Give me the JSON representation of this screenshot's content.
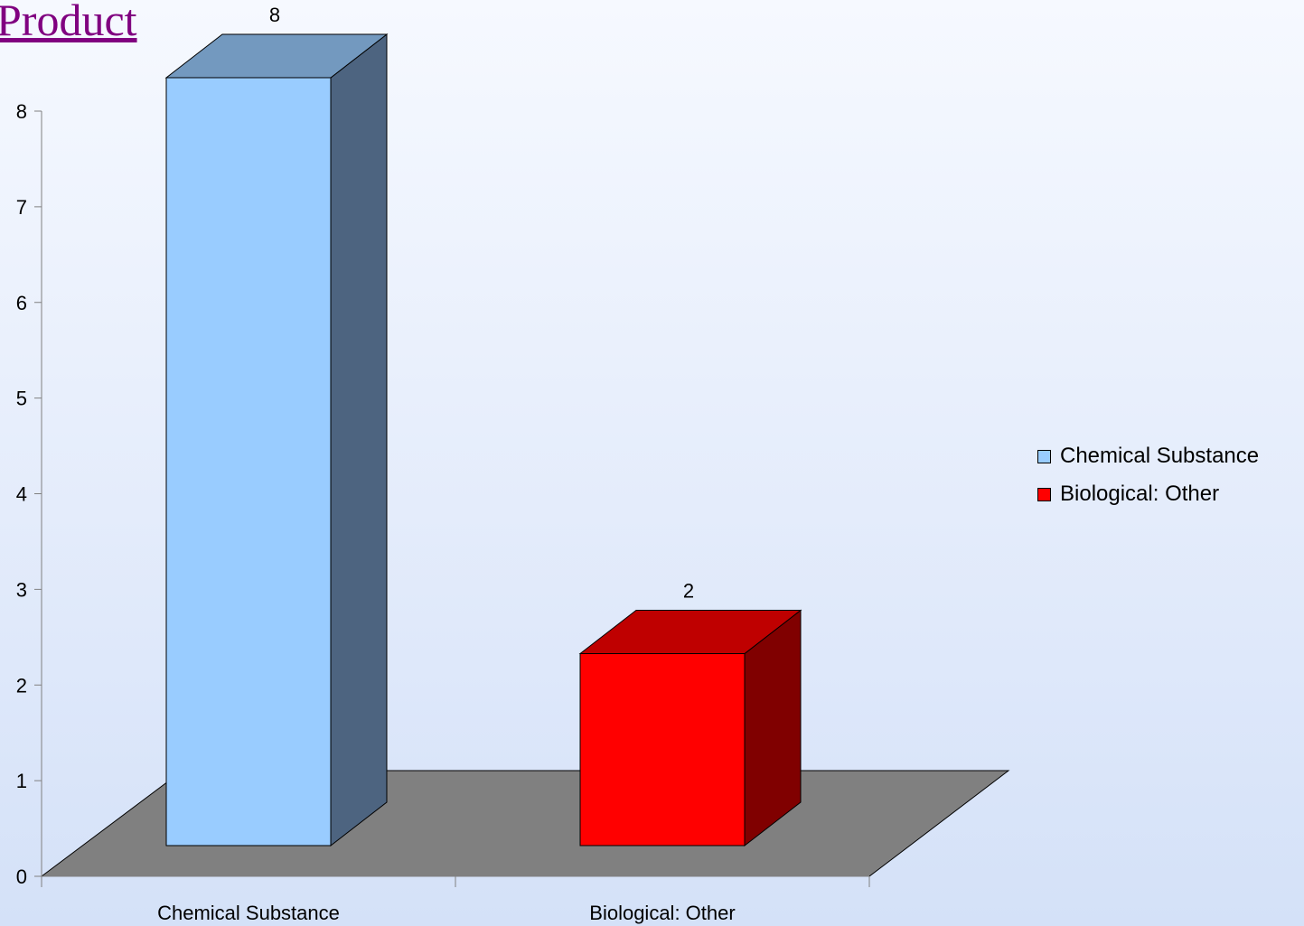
{
  "page": {
    "title_link": "Product"
  },
  "chart_data": {
    "type": "bar",
    "categories": [
      "Chemical Substance",
      "Biological: Other"
    ],
    "values": [
      8,
      2
    ],
    "data_labels": [
      "8",
      "2"
    ],
    "ylim": [
      0,
      8
    ],
    "yticks": [
      0,
      1,
      2,
      3,
      4,
      5,
      6,
      7,
      8
    ],
    "colors": {
      "Chemical Substance": {
        "front": "#99ccff",
        "side": "#4d6480",
        "top": "#7399bf"
      },
      "Biological: Other": {
        "front": "#ff0000",
        "side": "#800000",
        "top": "#bf0000"
      },
      "floor": "#808080"
    },
    "legend": {
      "position": "right",
      "entries": [
        {
          "label": "Chemical Substance",
          "color": "#99ccff"
        },
        {
          "label": "Biological: Other",
          "color": "#ff0000"
        }
      ]
    },
    "three_d": true,
    "grid": false
  }
}
